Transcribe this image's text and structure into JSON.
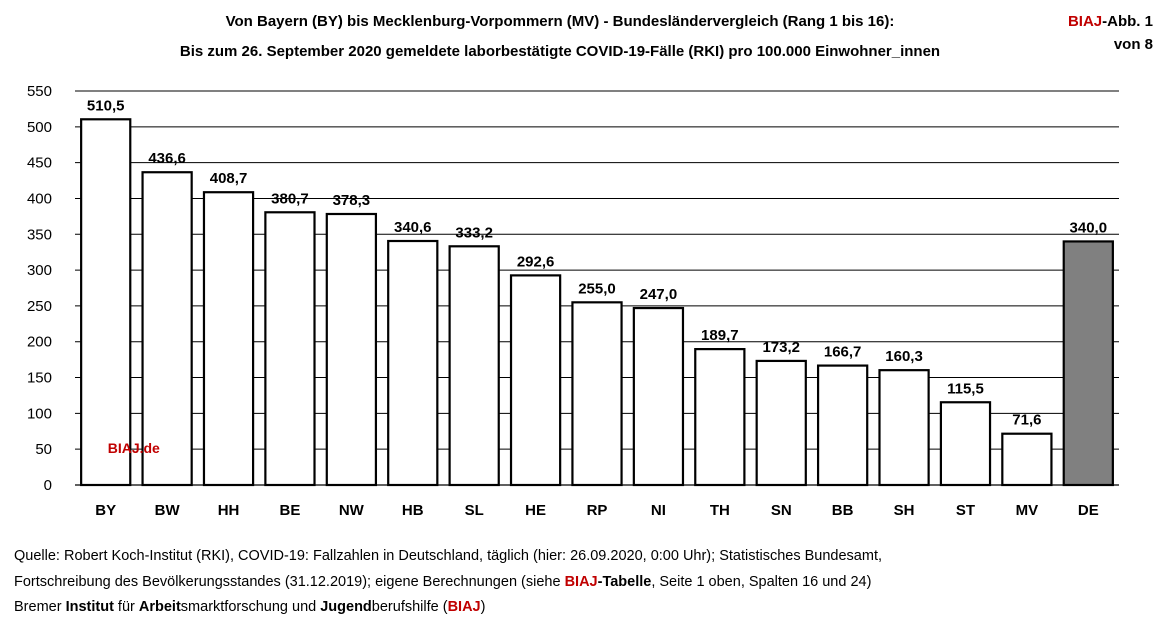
{
  "header": {
    "title_line1": "Von Bayern (BY) bis Mecklenburg-Vorpommern (MV)  - Bundesländervergleich (Rang 1 bis 16):",
    "title_line2": "Bis zum 26. September 2020 gemeldete laborbestätigte COVID-19-Fälle (RKI) pro 100.000 Einwohner_innen",
    "badge_brand": "BIAJ",
    "badge_rest": "-Abb. 1",
    "badge_line2": "von 8"
  },
  "chart_data": {
    "type": "bar",
    "title": "Bis zum 26. September 2020 gemeldete laborbestätigte COVID-19-Fälle (RKI) pro 100.000 Einwohner_innen",
    "categories": [
      "BY",
      "BW",
      "HH",
      "BE",
      "NW",
      "HB",
      "SL",
      "HE",
      "RP",
      "NI",
      "TH",
      "SN",
      "BB",
      "SH",
      "ST",
      "MV",
      "DE"
    ],
    "values": [
      510.5,
      436.6,
      408.7,
      380.7,
      378.3,
      340.6,
      333.2,
      292.6,
      255.0,
      247.0,
      189.7,
      173.2,
      166.7,
      160.3,
      115.5,
      71.6,
      340.0
    ],
    "value_labels": [
      "510,5",
      "436,6",
      "408,7",
      "380,7",
      "378,3",
      "340,6",
      "333,2",
      "292,6",
      "255,0",
      "247,0",
      "189,7",
      "173,2",
      "166,7",
      "160,3",
      "115,5",
      "71,6",
      "340,0"
    ],
    "highlight_category": "DE",
    "bar_color": "#ffffff",
    "highlight_color": "#808080",
    "ylim": [
      0,
      550
    ],
    "yticks": [
      0,
      50,
      100,
      150,
      200,
      250,
      300,
      350,
      400,
      450,
      500,
      550
    ],
    "grid": true,
    "xlabel": "",
    "ylabel": "",
    "watermark": "BIAJ.de"
  },
  "footer": {
    "line1": "Quelle: Robert Koch-Institut (RKI), COVID-19: Fallzahlen in Deutschland, täglich (hier: 26.09.2020, 0:00 Uhr); Statistisches Bundesamt,",
    "line2_a": "Fortschreibung des Bevölkerungsstandes (31.12.2019); eigene Berechnungen (siehe ",
    "line2_brand": "BIAJ",
    "line2_bold": "-Tabelle",
    "line2_b": ", Seite 1 oben, Spalten 16 und 24)",
    "line3_a": "Bremer ",
    "line3_w1": "Institut",
    "line3_b": " für ",
    "line3_w2": "Arbeit",
    "line3_c": "smarktforschung und ",
    "line3_w3": "Jugend",
    "line3_d": "berufshilfe (",
    "line3_brand": "BIAJ",
    "line3_e": ")"
  },
  "colors": {
    "brand_red": "#c00000"
  }
}
